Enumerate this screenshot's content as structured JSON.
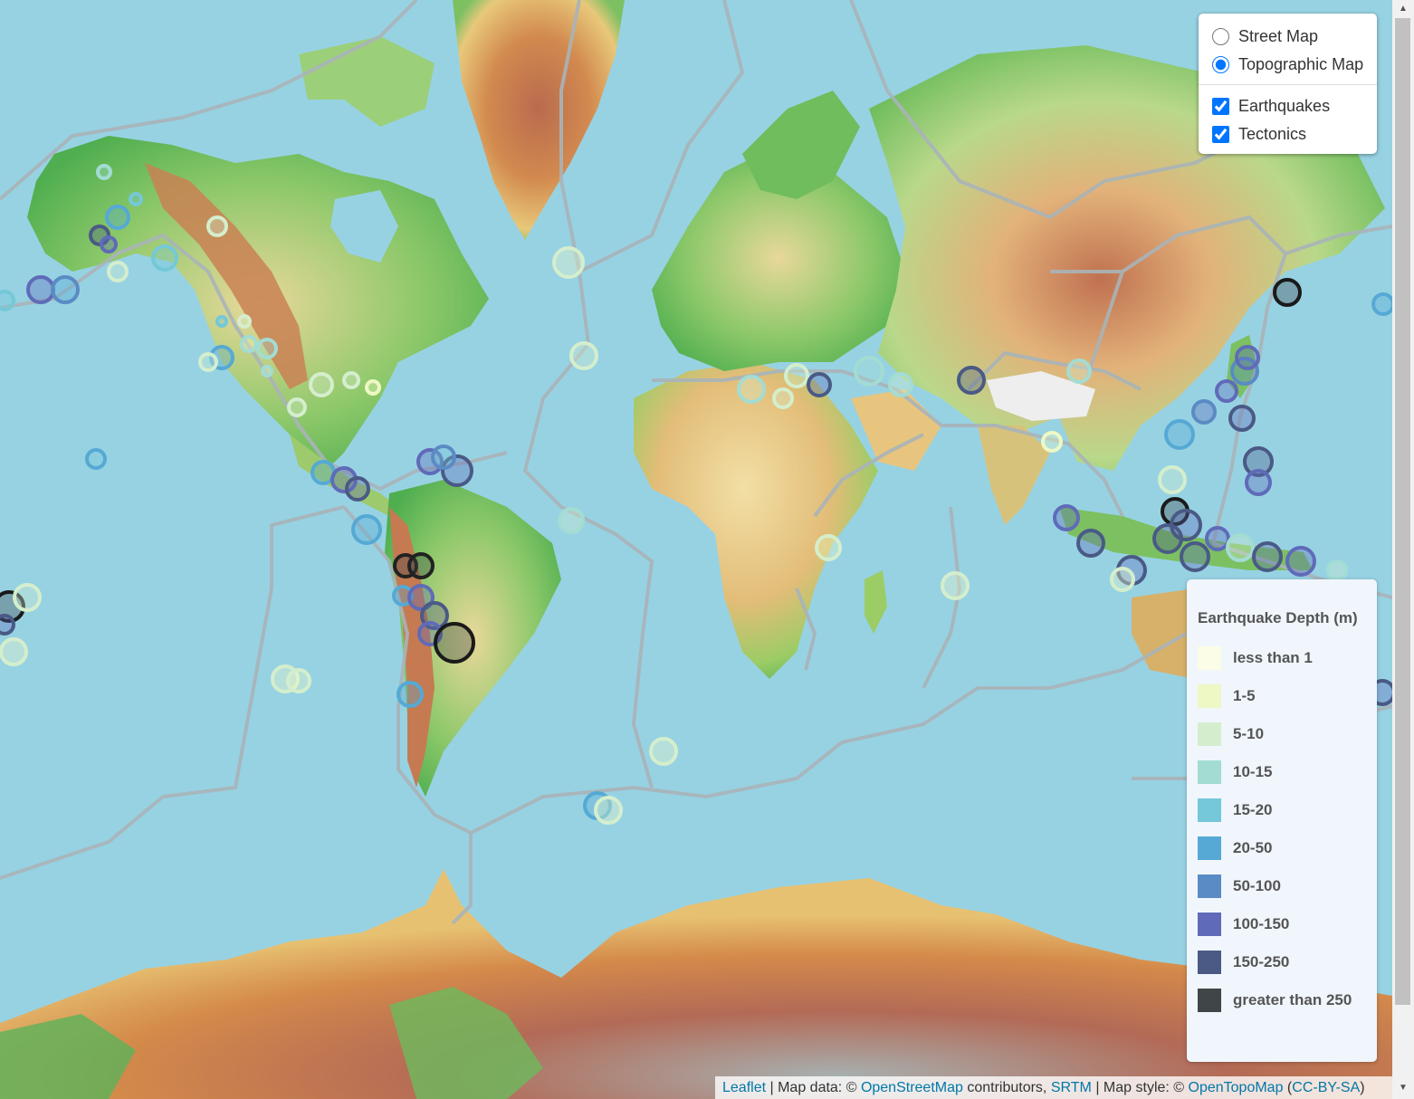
{
  "layers": {
    "base": [
      {
        "label": "Street Map",
        "checked": false
      },
      {
        "label": "Topographic Map",
        "checked": true
      }
    ],
    "overlays": [
      {
        "label": "Earthquakes",
        "checked": true
      },
      {
        "label": "Tectonics",
        "checked": true
      }
    ]
  },
  "legend": {
    "title": "Earthquake Depth (m)",
    "items": [
      {
        "label": "less than 1",
        "color": "#fbfde7"
      },
      {
        "label": "1-5",
        "color": "#edf8c4"
      },
      {
        "label": "5-10",
        "color": "#d4eecd"
      },
      {
        "label": "10-15",
        "color": "#a3dcd3"
      },
      {
        "label": "15-20",
        "color": "#74c8d8"
      },
      {
        "label": "20-50",
        "color": "#55a9d4"
      },
      {
        "label": "50-100",
        "color": "#5a8bc4"
      },
      {
        "label": "100-150",
        "color": "#5f6bb8"
      },
      {
        "label": "150-250",
        "color": "#4a5a85"
      },
      {
        "label": "greater than 250",
        "color": "#404548"
      }
    ]
  },
  "attribution": {
    "leaflet": "Leaflet",
    "sep1": " | Map data: © ",
    "osm": "OpenStreetMap",
    "contrib": " contributors, ",
    "srtm": "SRTM",
    "sep2": " | Map style: © ",
    "otm": "OpenTopoMap",
    "paren_open": " (",
    "license": "CC-BY-SA",
    "paren_close": ")"
  },
  "colors": {
    "ocean": "#97d2e3",
    "plate_boundary": "#a9b4b8"
  }
}
